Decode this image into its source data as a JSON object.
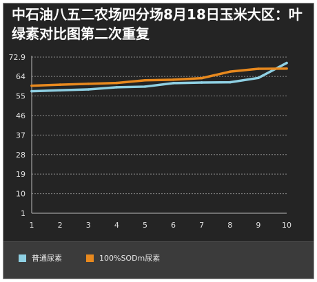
{
  "chart_data": {
    "type": "line",
    "title": "中石油八五二农场四分场8月18日玉米大区：叶绿素对比图第二次重复",
    "x": [
      1,
      2,
      3,
      4,
      5,
      6,
      7,
      8,
      9,
      10
    ],
    "xlabel": "",
    "ylabel": "",
    "ylim": [
      1,
      72.9
    ],
    "yticks": [
      1,
      10,
      19,
      28,
      37,
      46,
      55,
      64,
      72.9
    ],
    "grid": true,
    "legend": "bottom",
    "series": [
      {
        "name": "普通尿素",
        "color": "#8fd0e3",
        "values": [
          57.2,
          57.6,
          58.0,
          59.0,
          59.3,
          60.9,
          61.2,
          61.3,
          63.3,
          70.2
        ]
      },
      {
        "name": "100%SODm尿素",
        "color": "#e8891e",
        "values": [
          59.7,
          60.2,
          60.6,
          61.0,
          62.2,
          62.5,
          63.2,
          66.2,
          67.5,
          67.6
        ]
      }
    ]
  }
}
